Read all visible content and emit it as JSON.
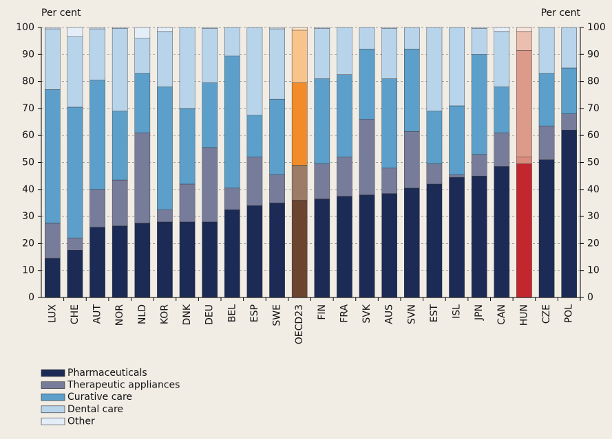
{
  "chart_data": {
    "type": "stacked_bar",
    "y_label": "Per cent",
    "y_label_right": "Per cent",
    "categories": [
      "LUX",
      "CHE",
      "AUT",
      "NOR",
      "NLD",
      "KOR",
      "DNK",
      "DEU",
      "BEL",
      "ESP",
      "SWE",
      "OECD23",
      "FIN",
      "FRA",
      "SVK",
      "AUS",
      "SVN",
      "EST",
      "ISL",
      "JPN",
      "CAN",
      "HUN",
      "CZE",
      "POL"
    ],
    "series": [
      {
        "name": "Pharmaceuticals",
        "color": "#1c2b55",
        "values": [
          14.5,
          17.5,
          26,
          26.5,
          27.5,
          28,
          28,
          28,
          32.5,
          34,
          35,
          36,
          36.5,
          37.5,
          38,
          38.5,
          40.5,
          42,
          44.5,
          45,
          48.5,
          49.5,
          51,
          62
        ]
      },
      {
        "name": "Therapeutic appliances",
        "color": "#787c9b",
        "values": [
          13,
          4.5,
          14,
          17,
          33.5,
          4.5,
          14,
          27.5,
          8,
          18,
          10.5,
          13,
          13,
          14.5,
          28,
          9.5,
          21,
          7.5,
          1,
          8,
          12.5,
          2.5,
          12.5,
          6
        ]
      },
      {
        "name": "Curative care",
        "color": "#5c9fca",
        "values": [
          49.5,
          48.5,
          40.5,
          25.5,
          22,
          45.5,
          28,
          24,
          49,
          15.5,
          28,
          30.5,
          31.5,
          30.5,
          26,
          33,
          30.5,
          19.5,
          25.5,
          37,
          17,
          39.5,
          19.5,
          17
        ]
      },
      {
        "name": "Dental care",
        "color": "#b8d4eb",
        "values": [
          22.5,
          26,
          19,
          30.7,
          13,
          20.5,
          30,
          20.2,
          10.5,
          32.5,
          26,
          19.5,
          18.7,
          17.5,
          8,
          18.7,
          8,
          31,
          29,
          9.7,
          20.5,
          7,
          17,
          15
        ]
      },
      {
        "name": "Other",
        "color": "#e4eef8",
        "values": [
          0.5,
          3.5,
          0.5,
          0.3,
          4,
          1.5,
          0,
          0.3,
          0,
          0,
          0.5,
          1,
          0.3,
          0,
          0,
          0.3,
          0,
          0,
          0,
          0.3,
          1.5,
          1.5,
          0,
          0
        ]
      }
    ],
    "highlight": {
      "OECD23": [
        "#6b4530",
        "#9c7b67",
        "#f28c28",
        "#f9c48b",
        "#fde5c9"
      ],
      "HUN": [
        "#c1272d",
        "#d98b7d",
        "#dc9a8a",
        "#ebbeaf",
        "#f8e2da"
      ]
    },
    "ylim": [
      0,
      100
    ],
    "yticks": [
      0,
      10,
      20,
      30,
      40,
      50,
      60,
      70,
      80,
      90,
      100
    ],
    "grid": true
  }
}
